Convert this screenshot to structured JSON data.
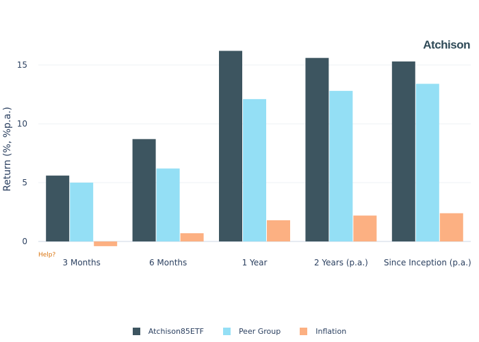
{
  "brand": {
    "name": "Atchison"
  },
  "help": {
    "label": "Help?"
  },
  "chart_data": {
    "type": "bar",
    "categories": [
      "3 Months",
      "6 Months",
      "1 Year",
      "2 Years (p.a.)",
      "Since Inception (p.a.)"
    ],
    "series": [
      {
        "name": "Atchison85ETF",
        "color": "#3d5560",
        "values": [
          5.6,
          8.7,
          16.2,
          15.6,
          15.3
        ]
      },
      {
        "name": "Peer Group",
        "color": "#94dff5",
        "values": [
          5.0,
          6.2,
          12.1,
          12.8,
          13.4
        ]
      },
      {
        "name": "Inflation",
        "color": "#fcb082",
        "values": [
          -0.4,
          0.7,
          1.8,
          2.2,
          2.4
        ]
      }
    ],
    "ylabel": "Return (%, %p.a.)",
    "xlabel": "",
    "ylim": [
      -1,
      19
    ],
    "yticks": [
      0,
      5,
      10,
      15
    ],
    "grid": true,
    "legend_position": "bottom"
  }
}
